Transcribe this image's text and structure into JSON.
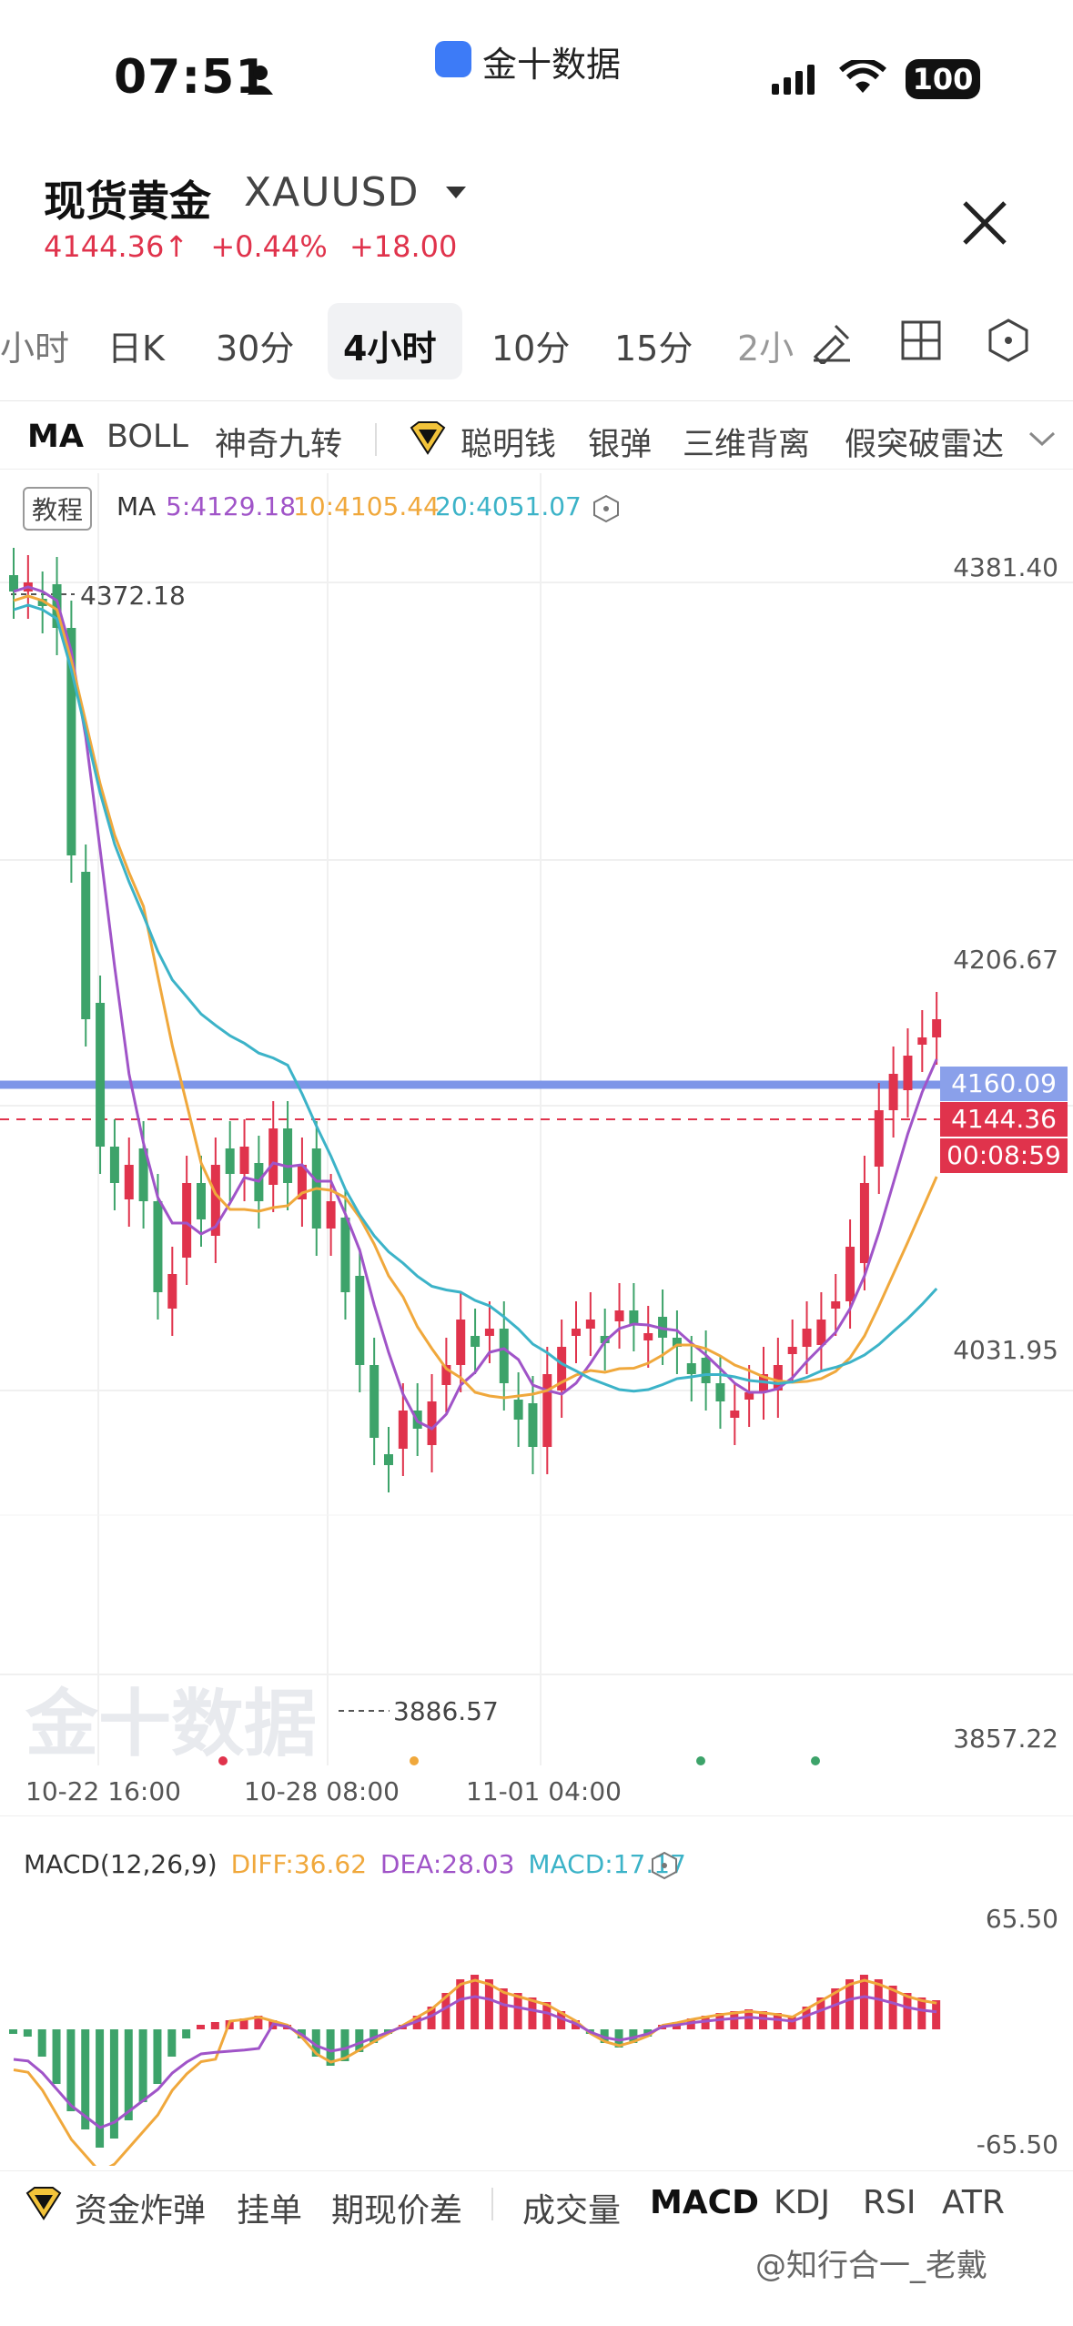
{
  "status_bar": {
    "time": "07:51",
    "app": "金十数据",
    "battery": "100",
    "icons": [
      "person-icon",
      "signal-icon",
      "wifi-icon",
      "battery-icon"
    ]
  },
  "header": {
    "title": "现货黄金",
    "symbol": "XAUUSD",
    "price": "4144.36↑",
    "change_pct": "+0.44%",
    "change_abs": "+18.00",
    "accent_color": "#e0334c"
  },
  "timeframes": {
    "items": [
      "小时",
      "日K",
      "30分",
      "4小时",
      "10分",
      "15分",
      "2小"
    ],
    "selected": "4小时",
    "tools": [
      "draw-tool-icon",
      "grid-layout-icon",
      "settings-hex-icon"
    ]
  },
  "indicators": {
    "items": [
      "MA",
      "BOLL",
      "神奇九转",
      "聪明钱",
      "银弹",
      "三维背离",
      "假突破雷达"
    ],
    "selected": "MA"
  },
  "chart": {
    "badge": "教程",
    "legend_label": "MA",
    "ma5": "5:4129.18",
    "ma10": "10:4105.44",
    "ma20": "20:4051.07",
    "price_axis": [
      "4381.40",
      "4206.67",
      "4031.95",
      "3857.22"
    ],
    "marker_high": "4372.18",
    "marker_low": "3886.57",
    "alert_line": "4160.09",
    "current_price": "4144.36",
    "countdown": "00:08:59",
    "dates": [
      "10-22 16:00",
      "10-28 08:00",
      "11-01 04:00"
    ],
    "watermark": "金十数据",
    "colors": {
      "up": "#e0334c",
      "down": "#3da36a",
      "ma5": "#a054c8",
      "ma10": "#f0a83c",
      "ma20": "#3cb3c8",
      "alert": "#7d95e8"
    }
  },
  "macd": {
    "label": "MACD(12,26,9)",
    "diff": "DIFF:36.62",
    "dea": "DEA:28.03",
    "macd": "MACD:17.17",
    "axis_top": "65.50",
    "axis_bottom": "-65.50"
  },
  "bottom_nav": {
    "items": [
      "资金炸弹",
      "挂单",
      "期现价差",
      "成交量",
      "MACD",
      "KDJ",
      "RSI",
      "ATR"
    ],
    "selected": "MACD"
  },
  "watermark_text": "@知行合一_老戴"
}
